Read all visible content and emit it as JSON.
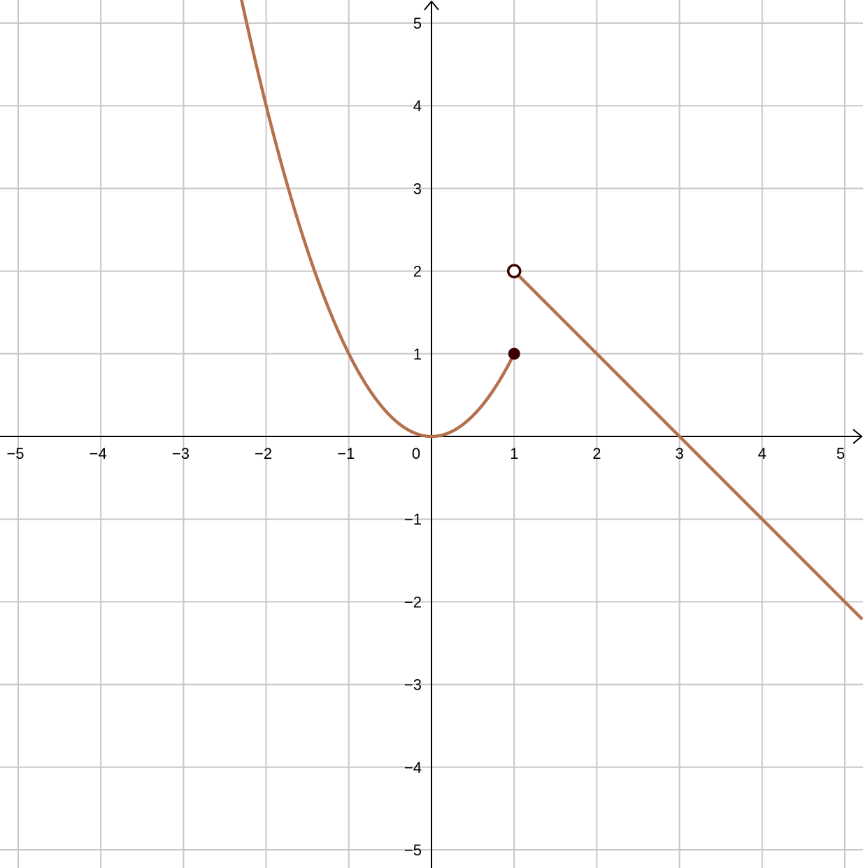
{
  "chart_data": {
    "type": "line",
    "title": "",
    "xlabel": "",
    "ylabel": "",
    "xlim": [
      -5.2,
      5.2
    ],
    "ylim": [
      -5.2,
      5.2
    ],
    "grid": true,
    "x_ticks": [
      {
        "value": -5,
        "label": "−5"
      },
      {
        "value": -4,
        "label": "−4"
      },
      {
        "value": -3,
        "label": "−3"
      },
      {
        "value": -2,
        "label": "−2"
      },
      {
        "value": -1,
        "label": "−1"
      },
      {
        "value": 0,
        "label": "0"
      },
      {
        "value": 1,
        "label": "1"
      },
      {
        "value": 2,
        "label": "2"
      },
      {
        "value": 3,
        "label": "3"
      },
      {
        "value": 4,
        "label": "4"
      },
      {
        "value": 5,
        "label": "5"
      }
    ],
    "y_ticks": [
      {
        "value": 5,
        "label": "5"
      },
      {
        "value": 4,
        "label": "4"
      },
      {
        "value": 3,
        "label": "3"
      },
      {
        "value": 2,
        "label": "2"
      },
      {
        "value": 1,
        "label": "1"
      },
      {
        "value": -1,
        "label": "−1"
      },
      {
        "value": -2,
        "label": "−2"
      },
      {
        "value": -3,
        "label": "−3"
      },
      {
        "value": -4,
        "label": "−4"
      },
      {
        "value": -5,
        "label": "−5"
      }
    ],
    "series": [
      {
        "color": "#b5704d",
        "points": [
          [
            -2.3,
            5.29
          ],
          [
            -2.2,
            4.84
          ],
          [
            -2.0,
            4.0
          ],
          [
            -1.8,
            3.24
          ],
          [
            -1.6,
            2.56
          ],
          [
            -1.4,
            1.96
          ],
          [
            -1.2,
            1.44
          ],
          [
            -1.0,
            1.0
          ],
          [
            -0.8,
            0.64
          ],
          [
            -0.6,
            0.36
          ],
          [
            -0.4,
            0.16
          ],
          [
            -0.2,
            0.04
          ],
          [
            0.0,
            0.0
          ],
          [
            0.2,
            0.04
          ],
          [
            0.4,
            0.16
          ],
          [
            0.6,
            0.36
          ],
          [
            0.8,
            0.64
          ],
          [
            1.0,
            1.0
          ]
        ]
      },
      {
        "color": "#b5704d",
        "points": [
          [
            1.0,
            2.0
          ],
          [
            5.2,
            -2.2
          ]
        ]
      }
    ],
    "markers": [
      {
        "x": 1,
        "y": 2,
        "style": "open",
        "color": "#3d0000"
      },
      {
        "x": 1,
        "y": 1,
        "style": "filled",
        "color": "#3d0000"
      }
    ]
  }
}
